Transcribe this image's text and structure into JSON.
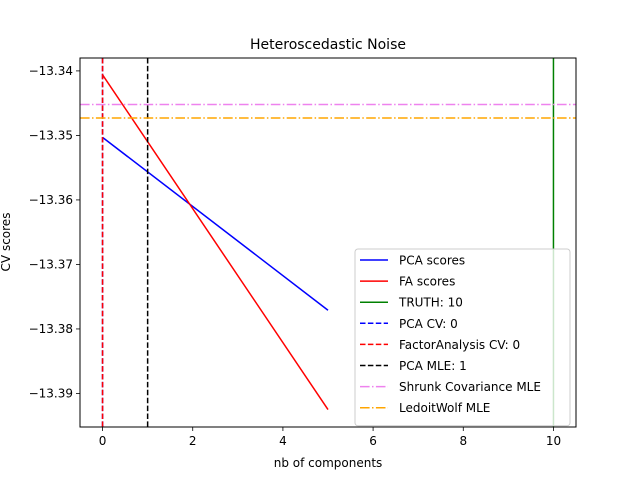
{
  "chart_data": {
    "type": "line",
    "title": "Heteroscedastic Noise",
    "xlabel": "nb of components",
    "ylabel": "CV scores",
    "xlim": [
      -0.5,
      10.5
    ],
    "ylim": [
      -13.3952,
      -13.338
    ],
    "xticks": [
      0,
      2,
      4,
      6,
      8,
      10
    ],
    "yticks": [
      -13.39,
      -13.38,
      -13.37,
      -13.36,
      -13.35,
      -13.34
    ],
    "grid": false,
    "legend_position": "lower-right",
    "series": [
      {
        "name": "PCA scores",
        "kind": "line",
        "style": "solid",
        "color": "#0000ff",
        "x": [
          0,
          5
        ],
        "y": [
          -13.3503,
          -13.3771
        ]
      },
      {
        "name": "FA scores",
        "kind": "line",
        "style": "solid",
        "color": "#ff0000",
        "x": [
          0,
          5
        ],
        "y": [
          -13.3406,
          -13.3925
        ]
      },
      {
        "name": "TRUTH: 10",
        "kind": "vline",
        "style": "solid",
        "color": "#008000",
        "x": 10
      },
      {
        "name": "PCA CV: 0",
        "kind": "vline",
        "style": "dashed",
        "color": "#0000ff",
        "x": 0
      },
      {
        "name": "FactorAnalysis CV: 0",
        "kind": "vline",
        "style": "dashed",
        "color": "#ff0000",
        "x": 0
      },
      {
        "name": "PCA MLE: 1",
        "kind": "vline",
        "style": "dashed",
        "color": "#000000",
        "x": 1
      },
      {
        "name": "Shrunk Covariance MLE",
        "kind": "hline",
        "style": "dashdot",
        "color": "#ee82ee",
        "y": -13.3452
      },
      {
        "name": "LedoitWolf MLE",
        "kind": "hline",
        "style": "dashdot",
        "color": "#ffa500",
        "y": -13.3473
      }
    ]
  }
}
